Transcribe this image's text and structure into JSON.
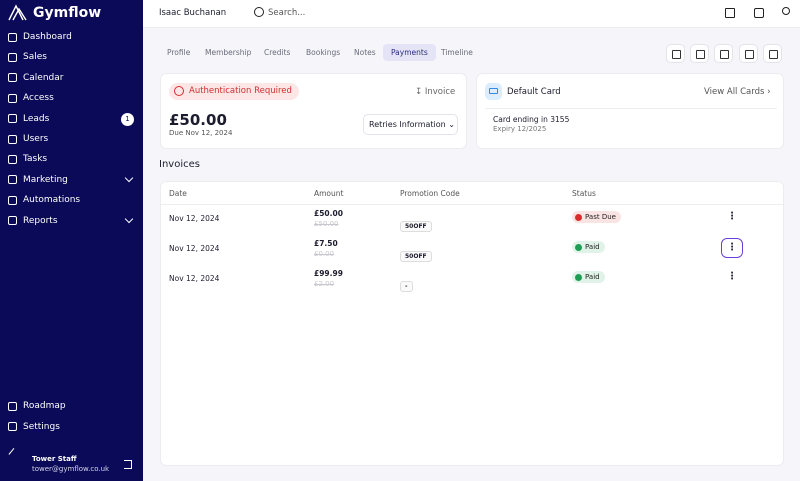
{
  "sidebar": {
    "brand": "Gymflow",
    "nav": [
      {
        "label": "Dashboard"
      },
      {
        "label": "Sales"
      },
      {
        "label": "Calendar"
      },
      {
        "label": "Access"
      },
      {
        "label": "Leads",
        "badge": "1"
      },
      {
        "label": "Users"
      },
      {
        "label": "Tasks"
      },
      {
        "label": "Marketing",
        "expandable": true
      },
      {
        "label": "Automations"
      },
      {
        "label": "Reports",
        "expandable": true
      }
    ],
    "bottom_nav": [
      {
        "label": "Roadmap"
      },
      {
        "label": "Settings"
      }
    ],
    "user": {
      "name": "Tower Staff",
      "email": "tower@gymflow.co.uk"
    }
  },
  "header": {
    "member": "Isaac Buchanan",
    "search": "Search..."
  },
  "tabs": [
    {
      "label": "Profile"
    },
    {
      "label": "Membership"
    },
    {
      "label": "Credits"
    },
    {
      "label": "Bookings"
    },
    {
      "label": "Notes"
    },
    {
      "label": "Payments",
      "active": true
    },
    {
      "label": "Timeline"
    }
  ],
  "balance": {
    "alert": "Authentication Required",
    "invoice": "Invoice",
    "amount": "£50.00",
    "due": "Due Nov 12, 2024",
    "retries": "Retries Information"
  },
  "card": {
    "title": "Default Card",
    "view_all": "View All Cards",
    "number": "Card ending in 3155",
    "expiry": "Expiry 12/2025"
  },
  "invoices": {
    "title": "Invoices",
    "columns": [
      "Date",
      "Amount",
      "Promotion Code",
      "Status"
    ],
    "rows": [
      {
        "date": "Nov 12, 2024",
        "amount": "£50.00",
        "original": "£50.00",
        "promo": "50OFF",
        "status": "Past Due",
        "status_color": "#d92d2d"
      },
      {
        "date": "Nov 12, 2024",
        "amount": "£7.50",
        "original": "£0.00",
        "promo": "50OFF",
        "status": "Paid",
        "status_color": "#1f9d55",
        "focused": true
      },
      {
        "date": "Nov 12, 2024",
        "amount": "£99.99",
        "original": "£2.00",
        "promo": "-",
        "status": "Paid",
        "status_color": "#1f9d55"
      }
    ]
  }
}
